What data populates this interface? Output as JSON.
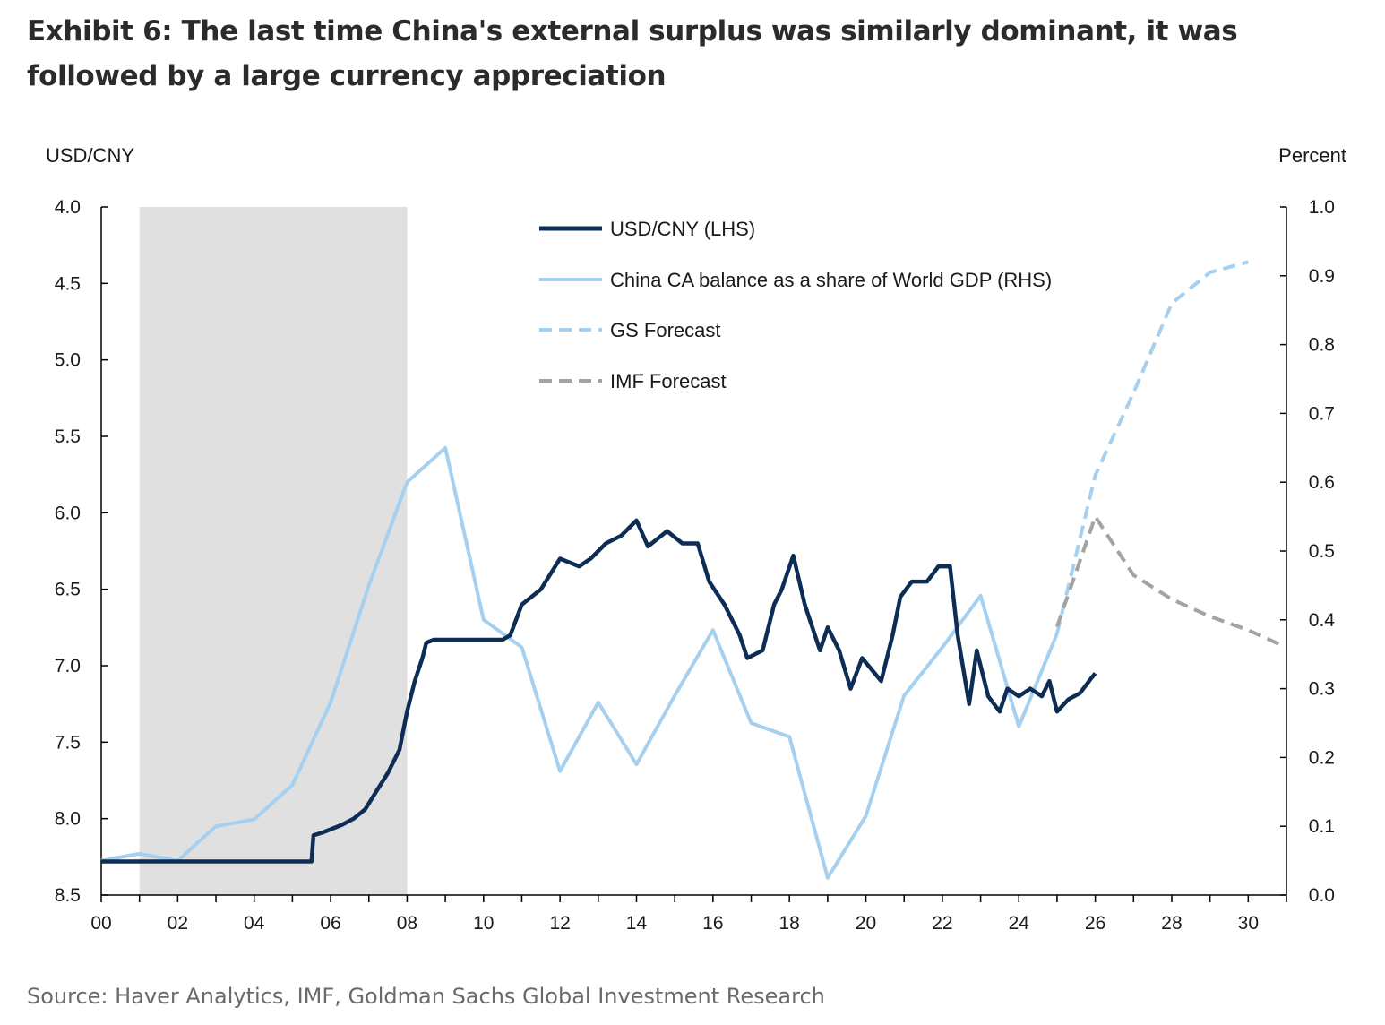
{
  "title": "Exhibit 6: The last time China's external surplus was similarly dominant, it was followed by a large currency appreciation",
  "source": "Source: Haver Analytics, IMF, Goldman Sachs Global Investment Research",
  "chart_data": {
    "type": "line",
    "left_axis": {
      "unit": "USD/CNY",
      "range": [
        4.0,
        8.5
      ],
      "inverted": true,
      "ticks": [
        "4.0",
        "4.5",
        "5.0",
        "5.5",
        "6.0",
        "6.5",
        "7.0",
        "7.5",
        "8.0",
        "8.5"
      ]
    },
    "right_axis": {
      "unit": "Percent",
      "range": [
        0.0,
        1.0
      ],
      "ticks": [
        "1.0",
        "0.9",
        "0.8",
        "0.7",
        "0.6",
        "0.5",
        "0.4",
        "0.3",
        "0.2",
        "0.1",
        "0.0"
      ]
    },
    "x_axis": {
      "range": [
        2000,
        2031
      ],
      "tick_values": [
        2000,
        2002,
        2004,
        2006,
        2008,
        2010,
        2012,
        2014,
        2016,
        2018,
        2020,
        2022,
        2024,
        2026,
        2028,
        2030
      ],
      "tick_labels": [
        "00",
        "02",
        "04",
        "06",
        "08",
        "10",
        "12",
        "14",
        "16",
        "18",
        "20",
        "22",
        "24",
        "26",
        "28",
        "30"
      ]
    },
    "shaded_period": [
      2001,
      2008
    ],
    "colors": {
      "usdcny": "#0d2d55",
      "ca_balance": "#a6d0ef",
      "gs_forecast": "#a6d0ef",
      "imf_forecast": "#a3a3a3",
      "shade": "#e0e0e0"
    },
    "legend": [
      "USD/CNY (LHS)",
      "China CA balance as a share of World GDP (RHS)",
      "GS Forecast",
      "IMF Forecast"
    ],
    "series": [
      {
        "name": "USD/CNY (LHS)",
        "axis": "left",
        "style": "solid-thick",
        "points": [
          [
            2000.0,
            8.28
          ],
          [
            2000.5,
            8.28
          ],
          [
            2001.0,
            8.28
          ],
          [
            2001.5,
            8.28
          ],
          [
            2002.0,
            8.28
          ],
          [
            2003.0,
            8.28
          ],
          [
            2004.0,
            8.28
          ],
          [
            2005.0,
            8.28
          ],
          [
            2005.5,
            8.28
          ],
          [
            2005.55,
            8.11
          ],
          [
            2005.8,
            8.09
          ],
          [
            2006.0,
            8.07
          ],
          [
            2006.3,
            8.04
          ],
          [
            2006.6,
            8.0
          ],
          [
            2006.9,
            7.94
          ],
          [
            2007.2,
            7.82
          ],
          [
            2007.5,
            7.7
          ],
          [
            2007.8,
            7.55
          ],
          [
            2008.0,
            7.3
          ],
          [
            2008.2,
            7.1
          ],
          [
            2008.4,
            6.95
          ],
          [
            2008.5,
            6.85
          ],
          [
            2008.7,
            6.83
          ],
          [
            2009.0,
            6.83
          ],
          [
            2009.5,
            6.83
          ],
          [
            2010.0,
            6.83
          ],
          [
            2010.5,
            6.83
          ],
          [
            2010.7,
            6.8
          ],
          [
            2011.0,
            6.6
          ],
          [
            2011.5,
            6.5
          ],
          [
            2012.0,
            6.3
          ],
          [
            2012.5,
            6.35
          ],
          [
            2012.8,
            6.3
          ],
          [
            2013.2,
            6.2
          ],
          [
            2013.6,
            6.15
          ],
          [
            2014.0,
            6.05
          ],
          [
            2014.3,
            6.22
          ],
          [
            2014.8,
            6.12
          ],
          [
            2015.2,
            6.2
          ],
          [
            2015.6,
            6.2
          ],
          [
            2015.9,
            6.45
          ],
          [
            2016.3,
            6.6
          ],
          [
            2016.7,
            6.8
          ],
          [
            2016.9,
            6.95
          ],
          [
            2017.3,
            6.9
          ],
          [
            2017.6,
            6.6
          ],
          [
            2017.8,
            6.5
          ],
          [
            2018.1,
            6.28
          ],
          [
            2018.4,
            6.6
          ],
          [
            2018.8,
            6.9
          ],
          [
            2019.0,
            6.75
          ],
          [
            2019.3,
            6.9
          ],
          [
            2019.6,
            7.15
          ],
          [
            2019.9,
            6.95
          ],
          [
            2020.4,
            7.1
          ],
          [
            2020.7,
            6.8
          ],
          [
            2020.9,
            6.55
          ],
          [
            2021.2,
            6.45
          ],
          [
            2021.6,
            6.45
          ],
          [
            2021.9,
            6.35
          ],
          [
            2022.2,
            6.35
          ],
          [
            2022.4,
            6.8
          ],
          [
            2022.7,
            7.25
          ],
          [
            2022.9,
            6.9
          ],
          [
            2023.2,
            7.2
          ],
          [
            2023.5,
            7.3
          ],
          [
            2023.7,
            7.15
          ],
          [
            2024.0,
            7.2
          ],
          [
            2024.3,
            7.15
          ],
          [
            2024.6,
            7.2
          ],
          [
            2024.8,
            7.1
          ],
          [
            2025.0,
            7.3
          ],
          [
            2025.3,
            7.22
          ],
          [
            2025.6,
            7.18
          ],
          [
            2025.9,
            7.08
          ],
          [
            2026.0,
            7.05
          ]
        ]
      },
      {
        "name": "China CA balance as a share of World GDP (RHS)",
        "axis": "right",
        "style": "solid",
        "points": [
          [
            2000,
            0.05
          ],
          [
            2001,
            0.06
          ],
          [
            2002,
            0.05
          ],
          [
            2003,
            0.1
          ],
          [
            2004,
            0.11
          ],
          [
            2005,
            0.16
          ],
          [
            2006,
            0.28
          ],
          [
            2007,
            0.45
          ],
          [
            2008,
            0.6
          ],
          [
            2009,
            0.65
          ],
          [
            2010,
            0.4
          ],
          [
            2011,
            0.36
          ],
          [
            2012,
            0.18
          ],
          [
            2013,
            0.28
          ],
          [
            2014,
            0.19
          ],
          [
            2015,
            0.29
          ],
          [
            2016,
            0.385
          ],
          [
            2017,
            0.25
          ],
          [
            2018,
            0.23
          ],
          [
            2019,
            0.025
          ],
          [
            2020,
            0.115
          ],
          [
            2021,
            0.29
          ],
          [
            2022,
            0.36
          ],
          [
            2023,
            0.435
          ],
          [
            2024,
            0.245
          ],
          [
            2025,
            0.38
          ]
        ]
      },
      {
        "name": "GS Forecast",
        "axis": "right",
        "style": "dashed",
        "points": [
          [
            2025,
            0.38
          ],
          [
            2026,
            0.61
          ],
          [
            2027,
            0.73
          ],
          [
            2028,
            0.86
          ],
          [
            2029,
            0.905
          ],
          [
            2030,
            0.92
          ]
        ]
      },
      {
        "name": "IMF Forecast",
        "axis": "right",
        "style": "dashed-grey",
        "points": [
          [
            2025,
            0.39
          ],
          [
            2026,
            0.55
          ],
          [
            2027,
            0.465
          ],
          [
            2028,
            0.43
          ],
          [
            2029,
            0.405
          ],
          [
            2030,
            0.385
          ],
          [
            2030.8,
            0.365
          ]
        ]
      }
    ]
  }
}
